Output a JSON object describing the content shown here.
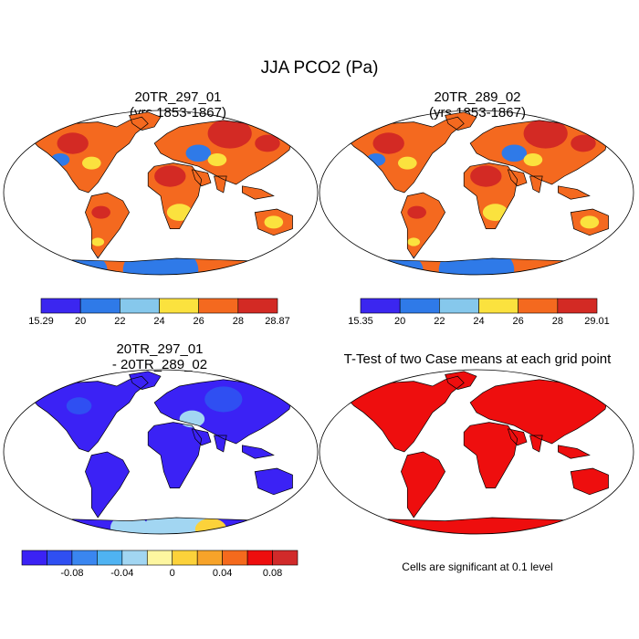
{
  "title": "JJA PCO2 (Pa)",
  "panels": [
    {
      "id": "p1",
      "title_line1": "20TR_297_01",
      "title_line2": "(yrs 1853-1867)",
      "colorbar": {
        "colors": [
          "#3b26f0",
          "#2f7ae8",
          "#86c8ec",
          "#fbe23e",
          "#f4691f",
          "#d32a24"
        ],
        "labels": [
          "15.29",
          "20",
          "22",
          "24",
          "26",
          "28",
          "28.87"
        ]
      }
    },
    {
      "id": "p2",
      "title_line1": "20TR_289_02",
      "title_line2": "(yrs 1853-1867)",
      "colorbar": {
        "colors": [
          "#3b26f0",
          "#2f7ae8",
          "#86c8ec",
          "#fbe23e",
          "#f4691f",
          "#d32a24"
        ],
        "labels": [
          "15.35",
          "20",
          "22",
          "24",
          "26",
          "28",
          "29.01"
        ]
      }
    },
    {
      "id": "p3",
      "title_line1": "20TR_297_01",
      "title_line2": "- 20TR_289_02",
      "colorbar": {
        "colors": [
          "#3b22f5",
          "#2f4ff2",
          "#3a86f0",
          "#4fb3f2",
          "#a2d6f2",
          "#fdf6a0",
          "#fcd23a",
          "#f7a329",
          "#f56a1d",
          "#ee0e0e",
          "#d12a2a"
        ],
        "labels": [
          "-0.08",
          "-0.04",
          "0",
          "0.04",
          "0.08"
        ]
      }
    },
    {
      "id": "p4",
      "title_line1": "T-Test of two Case means at each grid point",
      "note": "Cells are significant at 0.1 level"
    }
  ],
  "land_colors": {
    "p1": [
      "#f4691f",
      "#d32a24",
      "#fbe23e",
      "#2f7ae8"
    ],
    "p2": [
      "#f4691f",
      "#d32a24",
      "#fbe23e",
      "#2f7ae8"
    ],
    "p3": [
      "#3b22f5",
      "#2f4ff2",
      "#a2d6f2",
      "#fcd23a"
    ],
    "p4": [
      "#ee0e0e"
    ]
  }
}
